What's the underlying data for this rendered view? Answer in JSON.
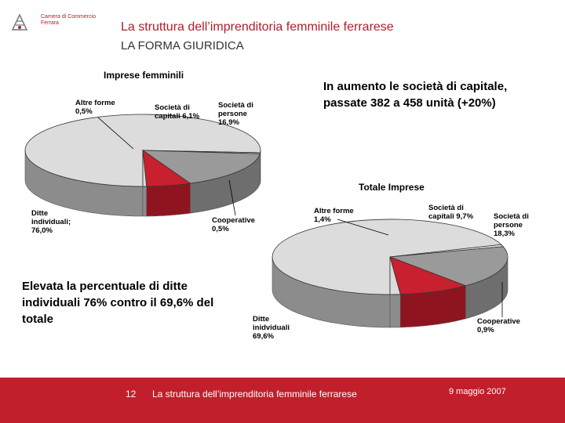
{
  "header": {
    "logo_line1": "Camera di Commercio",
    "logo_line2": "Ferrara",
    "title": "La struttura dell’imprenditoria femminile ferrarese",
    "subtitle": "LA FORMA GIURIDICA"
  },
  "notes": {
    "top_right": "In aumento le società di capitale, passate 382 a 458 unità (+20%)",
    "bottom_left": "Elevata la percentuale di ditte individuali 76% contro il 69,6% del totale"
  },
  "footer": {
    "page_number": "12",
    "text": "La struttura dell’imprenditoria femminile ferrarese",
    "date": "9 maggio 2007"
  },
  "colors": {
    "accent": "#c11f2b",
    "slice_light": "#dcdcdc",
    "slice_mid": "#9a9a9a",
    "slice_red": "#c8202f"
  },
  "chart_data": [
    {
      "type": "pie",
      "title": "Imprese femminili",
      "slices": [
        {
          "label": "Ditte individuali",
          "value": 76.0,
          "lines": [
            "Ditte",
            "individuali;",
            "76,0%"
          ]
        },
        {
          "label": "Cooperative",
          "value": 0.5,
          "lines": [
            "Cooperative",
            "0,5%"
          ]
        },
        {
          "label": "Società di persone",
          "value": 16.9,
          "lines": [
            "Società di",
            "persone",
            "16,9%"
          ]
        },
        {
          "label": "Società di capitali",
          "value": 6.1,
          "lines": [
            "Società di",
            "capitali 6,1%"
          ]
        },
        {
          "label": "Altre forme",
          "value": 0.5,
          "lines": [
            "Altre forme",
            "0,5%"
          ]
        }
      ]
    },
    {
      "type": "pie",
      "title": "Totale Imprese",
      "slices": [
        {
          "label": "Ditte inidviduali",
          "value": 69.6,
          "lines": [
            "Ditte",
            "inidviduali",
            "69,6%"
          ]
        },
        {
          "label": "Cooperative",
          "value": 0.9,
          "lines": [
            "Cooperative",
            "0,9%"
          ]
        },
        {
          "label": "Società di persone",
          "value": 18.3,
          "lines": [
            "Società di",
            "persone",
            "18,3%"
          ]
        },
        {
          "label": "Società di capitali",
          "value": 9.7,
          "lines": [
            "Società di",
            "capitali 9,7%"
          ]
        },
        {
          "label": "Altre forme",
          "value": 1.4,
          "lines": [
            "Altre forme",
            "1,4%"
          ]
        }
      ]
    }
  ]
}
